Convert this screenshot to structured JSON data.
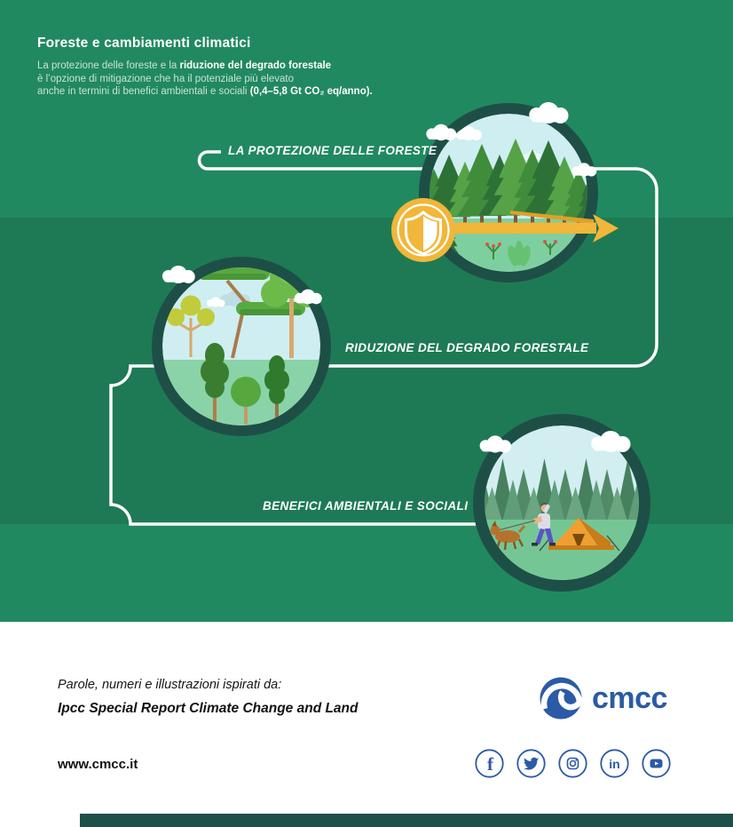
{
  "palette": {
    "band_light": "#21895f",
    "band_dark": "#1e7a54",
    "circle_ring": "#1d4f47",
    "gold": "#f1b63a",
    "cmcc_blue": "#2b5aa6",
    "sky": "#cfeef1",
    "white_route": "#ffffff"
  },
  "header": {
    "title": "Foreste e cambiamenti climatici",
    "body_1": "La protezione delle foreste e la ",
    "body_1_bold": "riduzione del degrado forestale",
    "body_2": "è l’opzione di mitigazione che ha il potenziale più elevato",
    "body_3": "anche in termini di benefici ambientali e sociali ",
    "body_3_bold": "(0,4–5,8 Gt CO₂ eq/anno)."
  },
  "flow": {
    "steps": [
      {
        "label": "LA PROTEZIONE DELLE FORESTE",
        "illustration": "conifer-forest with gold shield badge and arrow"
      },
      {
        "label": "RIDUZIONE DEL DEGRADO FORESTALE",
        "illustration": "mixed deciduous trees"
      },
      {
        "label": "BENEFICI AMBIENTALI E SOCIALI",
        "illustration": "camping tent, person walking dog in pine forest"
      }
    ]
  },
  "footer": {
    "credit_line": "Parole, numeri e illustrazioni ispirati da:",
    "credit_source": "Ipcc Special Report Climate Change and Land",
    "website": "www.cmcc.it",
    "logo_text": "cmcc",
    "social_icons": [
      "facebook-icon",
      "twitter-icon",
      "instagram-icon",
      "linkedin-icon",
      "youtube-icon"
    ]
  }
}
